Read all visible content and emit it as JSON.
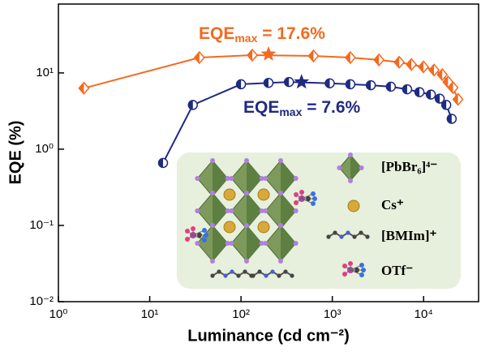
{
  "chart_data": {
    "type": "line",
    "xlabel": "Luminance (cd cm⁻²)",
    "ylabel": "EQE (%)",
    "xscale": "log",
    "yscale": "log",
    "xlim": [
      1,
      40000
    ],
    "ylim": [
      0.01,
      80
    ],
    "xticks": [
      {
        "value": 1,
        "label": "10⁰"
      },
      {
        "value": 10,
        "label": "10¹"
      },
      {
        "value": 100,
        "label": "10²"
      },
      {
        "value": 1000,
        "label": "10³"
      },
      {
        "value": 10000,
        "label": "10⁴"
      }
    ],
    "yticks": [
      {
        "value": 0.01,
        "label": "10⁻²"
      },
      {
        "value": 0.1,
        "label": "10⁻¹"
      },
      {
        "value": 1,
        "label": "10⁰"
      },
      {
        "value": 10,
        "label": "10¹"
      }
    ],
    "series": [
      {
        "color": "#f26a21",
        "marker": "diamond",
        "x": [
          1.9,
          35,
          133,
          622,
          1575,
          3240,
          5400,
          7340,
          9960,
          13000,
          16000,
          18500,
          21000,
          23800
        ],
        "values": [
          6.3,
          15.9,
          17.1,
          16.7,
          15.9,
          14.8,
          13.8,
          12.9,
          12.0,
          10.9,
          9.5,
          7.6,
          6.4,
          4.5
        ]
      },
      {
        "color": "#1f2a80",
        "marker": "circle",
        "x": [
          14,
          29.7,
          100,
          200,
          335,
          937,
          1575,
          2640,
          4380,
          6600,
          9000,
          12000,
          15000,
          17700,
          20300
        ],
        "values": [
          0.66,
          3.8,
          7.1,
          7.4,
          7.6,
          7.3,
          7.1,
          6.9,
          6.6,
          6.1,
          5.6,
          5.2,
          4.6,
          3.8,
          2.5
        ]
      }
    ],
    "annotations": [
      {
        "label": "EQE",
        "subscript": "max",
        "text": " = 17.6%",
        "x": 200,
        "y": 17.6,
        "color": "#f26a21"
      },
      {
        "label": "EQE",
        "subscript": "max",
        "text": " = 7.6%",
        "x": 460,
        "y": 7.6,
        "color": "#1f2a80"
      }
    ],
    "inset": {
      "legend": [
        "[PbBr₆]⁴⁻",
        "Cs⁺",
        "[BMIm]⁺",
        "OTf⁻"
      ]
    }
  }
}
